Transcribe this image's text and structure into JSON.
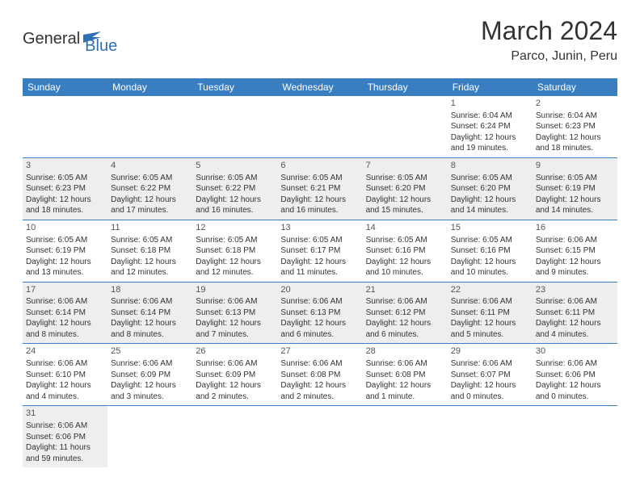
{
  "logo": {
    "text1": "General",
    "text2": "Blue"
  },
  "title": "March 2024",
  "location": "Parco, Junin, Peru",
  "colors": {
    "header_bg": "#3a7ec2",
    "header_text": "#ffffff",
    "row_alt_bg": "#eeeeee",
    "row_border": "#3a7ec2",
    "logo_blue": "#2d6fb5",
    "text": "#333333",
    "background": "#ffffff"
  },
  "weekdays": [
    "Sunday",
    "Monday",
    "Tuesday",
    "Wednesday",
    "Thursday",
    "Friday",
    "Saturday"
  ],
  "weeks": [
    {
      "alt": false,
      "days": [
        null,
        null,
        null,
        null,
        null,
        {
          "n": "1",
          "sunrise": "6:04 AM",
          "sunset": "6:24 PM",
          "daylight": "12 hours and 19 minutes."
        },
        {
          "n": "2",
          "sunrise": "6:04 AM",
          "sunset": "6:23 PM",
          "daylight": "12 hours and 18 minutes."
        }
      ]
    },
    {
      "alt": true,
      "days": [
        {
          "n": "3",
          "sunrise": "6:05 AM",
          "sunset": "6:23 PM",
          "daylight": "12 hours and 18 minutes."
        },
        {
          "n": "4",
          "sunrise": "6:05 AM",
          "sunset": "6:22 PM",
          "daylight": "12 hours and 17 minutes."
        },
        {
          "n": "5",
          "sunrise": "6:05 AM",
          "sunset": "6:22 PM",
          "daylight": "12 hours and 16 minutes."
        },
        {
          "n": "6",
          "sunrise": "6:05 AM",
          "sunset": "6:21 PM",
          "daylight": "12 hours and 16 minutes."
        },
        {
          "n": "7",
          "sunrise": "6:05 AM",
          "sunset": "6:20 PM",
          "daylight": "12 hours and 15 minutes."
        },
        {
          "n": "8",
          "sunrise": "6:05 AM",
          "sunset": "6:20 PM",
          "daylight": "12 hours and 14 minutes."
        },
        {
          "n": "9",
          "sunrise": "6:05 AM",
          "sunset": "6:19 PM",
          "daylight": "12 hours and 14 minutes."
        }
      ]
    },
    {
      "alt": false,
      "days": [
        {
          "n": "10",
          "sunrise": "6:05 AM",
          "sunset": "6:19 PM",
          "daylight": "12 hours and 13 minutes."
        },
        {
          "n": "11",
          "sunrise": "6:05 AM",
          "sunset": "6:18 PM",
          "daylight": "12 hours and 12 minutes."
        },
        {
          "n": "12",
          "sunrise": "6:05 AM",
          "sunset": "6:18 PM",
          "daylight": "12 hours and 12 minutes."
        },
        {
          "n": "13",
          "sunrise": "6:05 AM",
          "sunset": "6:17 PM",
          "daylight": "12 hours and 11 minutes."
        },
        {
          "n": "14",
          "sunrise": "6:05 AM",
          "sunset": "6:16 PM",
          "daylight": "12 hours and 10 minutes."
        },
        {
          "n": "15",
          "sunrise": "6:05 AM",
          "sunset": "6:16 PM",
          "daylight": "12 hours and 10 minutes."
        },
        {
          "n": "16",
          "sunrise": "6:06 AM",
          "sunset": "6:15 PM",
          "daylight": "12 hours and 9 minutes."
        }
      ]
    },
    {
      "alt": true,
      "days": [
        {
          "n": "17",
          "sunrise": "6:06 AM",
          "sunset": "6:14 PM",
          "daylight": "12 hours and 8 minutes."
        },
        {
          "n": "18",
          "sunrise": "6:06 AM",
          "sunset": "6:14 PM",
          "daylight": "12 hours and 8 minutes."
        },
        {
          "n": "19",
          "sunrise": "6:06 AM",
          "sunset": "6:13 PM",
          "daylight": "12 hours and 7 minutes."
        },
        {
          "n": "20",
          "sunrise": "6:06 AM",
          "sunset": "6:13 PM",
          "daylight": "12 hours and 6 minutes."
        },
        {
          "n": "21",
          "sunrise": "6:06 AM",
          "sunset": "6:12 PM",
          "daylight": "12 hours and 6 minutes."
        },
        {
          "n": "22",
          "sunrise": "6:06 AM",
          "sunset": "6:11 PM",
          "daylight": "12 hours and 5 minutes."
        },
        {
          "n": "23",
          "sunrise": "6:06 AM",
          "sunset": "6:11 PM",
          "daylight": "12 hours and 4 minutes."
        }
      ]
    },
    {
      "alt": false,
      "days": [
        {
          "n": "24",
          "sunrise": "6:06 AM",
          "sunset": "6:10 PM",
          "daylight": "12 hours and 4 minutes."
        },
        {
          "n": "25",
          "sunrise": "6:06 AM",
          "sunset": "6:09 PM",
          "daylight": "12 hours and 3 minutes."
        },
        {
          "n": "26",
          "sunrise": "6:06 AM",
          "sunset": "6:09 PM",
          "daylight": "12 hours and 2 minutes."
        },
        {
          "n": "27",
          "sunrise": "6:06 AM",
          "sunset": "6:08 PM",
          "daylight": "12 hours and 2 minutes."
        },
        {
          "n": "28",
          "sunrise": "6:06 AM",
          "sunset": "6:08 PM",
          "daylight": "12 hours and 1 minute."
        },
        {
          "n": "29",
          "sunrise": "6:06 AM",
          "sunset": "6:07 PM",
          "daylight": "12 hours and 0 minutes."
        },
        {
          "n": "30",
          "sunrise": "6:06 AM",
          "sunset": "6:06 PM",
          "daylight": "12 hours and 0 minutes."
        }
      ]
    },
    {
      "alt": true,
      "days": [
        {
          "n": "31",
          "sunrise": "6:06 AM",
          "sunset": "6:06 PM",
          "daylight": "11 hours and 59 minutes."
        },
        null,
        null,
        null,
        null,
        null,
        null
      ]
    }
  ]
}
